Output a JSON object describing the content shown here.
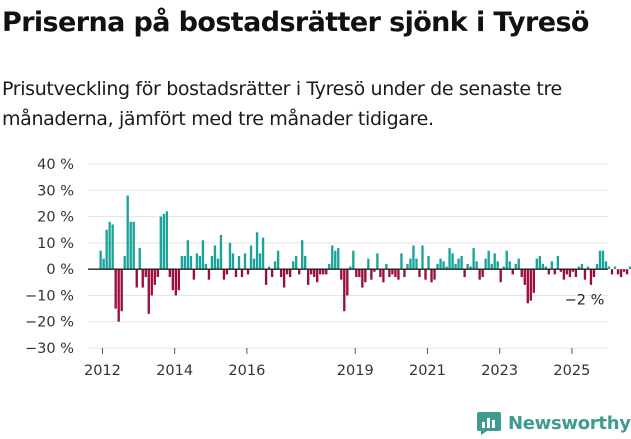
{
  "title": "Priserna på bostadsrätter sjönk i Tyresö",
  "subtitle": "Prisutveckling för bostadsrätter i Tyresö under de senaste tre månaderna, jämfört med tre månader tidigare.",
  "brand": {
    "name": "Newsworthy",
    "icon": "newsworthy-logo-icon"
  },
  "colors": {
    "positive": "#1aa39a",
    "negative": "#9b0d3e",
    "grid": "#e3e3e3",
    "axis": "#222222"
  },
  "chart_data": {
    "type": "bar",
    "title": "",
    "xlabel": "",
    "ylabel": "",
    "ylim": [
      -30,
      40
    ],
    "yticks": [
      -30,
      -20,
      -10,
      0,
      10,
      20,
      30,
      40
    ],
    "ytick_labels": [
      "−30 %",
      "−20 %",
      "−10 %",
      "0 %",
      "10 %",
      "20 %",
      "30 %",
      "40 %"
    ],
    "xticks": [
      2012,
      2014,
      2016,
      2019,
      2021,
      2023,
      2025
    ],
    "xtick_labels": [
      "2012",
      "2014",
      "2016",
      "2019",
      "2021",
      "2023",
      "2025"
    ],
    "xlim": [
      2011.6,
      2026.0
    ],
    "grid": "horizontal",
    "x_start": 2011.95,
    "x_step": 0.0833,
    "values": [
      7,
      4,
      15,
      18,
      17,
      -15,
      -20,
      -16,
      5,
      28,
      18,
      18,
      -7,
      8,
      -7,
      -3,
      -17,
      -10,
      -6,
      -3,
      20,
      21,
      22,
      -3,
      -8,
      -10,
      -8,
      5,
      5,
      11,
      5,
      -4,
      6,
      5,
      11,
      2,
      -4,
      5,
      9,
      4,
      13,
      -4,
      -2,
      10,
      6,
      -3,
      5,
      -3,
      6,
      -2,
      9,
      4,
      14,
      6,
      12,
      -6,
      1,
      -3,
      3,
      7,
      -3,
      -7,
      -2,
      -3,
      3,
      5,
      -2,
      11,
      5,
      -6,
      -2,
      -3,
      -5,
      -2,
      -2,
      -2,
      2,
      9,
      7,
      8,
      -4,
      -16,
      -10,
      1,
      7,
      -3,
      -3,
      -7,
      -5,
      4,
      -4,
      -1,
      6,
      -3,
      -5,
      2,
      -3,
      -2,
      -3,
      -4,
      6,
      -3,
      2,
      4,
      9,
      4,
      -3,
      9,
      -4,
      5,
      -5,
      -4,
      2,
      4,
      3,
      1,
      8,
      6,
      2,
      4,
      5,
      -3,
      2,
      1,
      8,
      3,
      -4,
      -3,
      4,
      7,
      2,
      6,
      3,
      -5,
      1,
      7,
      3,
      -2,
      2,
      4,
      -3,
      -6,
      -13,
      -12,
      -9,
      4,
      5,
      2,
      1,
      -2,
      3,
      -2,
      5,
      -1,
      -4,
      -2,
      -3,
      -1,
      -3,
      1,
      2,
      -4,
      1,
      -6,
      -3,
      2,
      7,
      7,
      3,
      1,
      -2,
      1,
      -2,
      -3,
      -1,
      -2,
      1,
      -3,
      -2,
      -2
    ],
    "annotations": [
      {
        "text": "−2 %",
        "x": 2025.35,
        "y": -2
      }
    ]
  }
}
